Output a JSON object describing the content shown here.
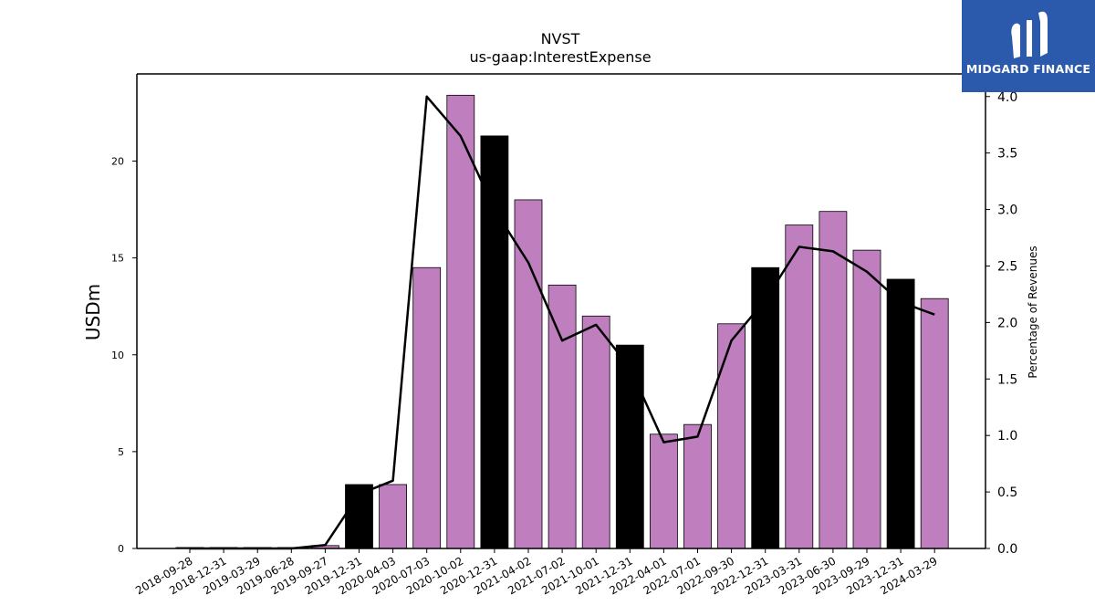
{
  "chart_data": {
    "type": "bar",
    "title": "NVST",
    "subtitle": "us-gaap:InterestExpense",
    "ylabel": "USDm",
    "y2label": "Percentage of Revenues",
    "categories": [
      "2018-09-28",
      "2018-12-31",
      "2019-03-29",
      "2019-06-28",
      "2019-09-27",
      "2019-12-31",
      "2020-04-03",
      "2020-07-03",
      "2020-10-02",
      "2020-12-31",
      "2021-04-02",
      "2021-07-02",
      "2021-10-01",
      "2021-12-31",
      "2022-04-01",
      "2022-07-01",
      "2022-09-30",
      "2022-12-31",
      "2023-03-31",
      "2023-06-30",
      "2023-09-29",
      "2023-12-31",
      "2024-03-29"
    ],
    "values": [
      0.05,
      0.05,
      0.05,
      0.05,
      0.15,
      3.3,
      3.3,
      14.5,
      23.4,
      21.3,
      18.0,
      13.6,
      12.0,
      10.5,
      5.9,
      6.4,
      11.6,
      14.5,
      16.7,
      17.4,
      15.4,
      13.9,
      12.9
    ],
    "bar_colors": [
      "#bf7fbf",
      "#bf7fbf",
      "#bf7fbf",
      "#bf7fbf",
      "#bf7fbf",
      "#000000",
      "#bf7fbf",
      "#bf7fbf",
      "#bf7fbf",
      "#000000",
      "#bf7fbf",
      "#bf7fbf",
      "#bf7fbf",
      "#000000",
      "#bf7fbf",
      "#bf7fbf",
      "#bf7fbf",
      "#000000",
      "#bf7fbf",
      "#bf7fbf",
      "#bf7fbf",
      "#000000",
      "#bf7fbf"
    ],
    "line_values": [
      0.0,
      0.0,
      0.0,
      0.0,
      0.03,
      0.48,
      0.6,
      4.0,
      3.65,
      3.0,
      2.53,
      1.84,
      1.98,
      1.6,
      0.94,
      0.99,
      1.84,
      2.2,
      2.67,
      2.63,
      2.45,
      2.18,
      2.07
    ],
    "ylim": [
      0,
      24.5
    ],
    "yticks": [
      0,
      5,
      10,
      15,
      20
    ],
    "y2lim": [
      0,
      4.2
    ],
    "y2ticks": [
      "0.0",
      "0.5",
      "1.0",
      "1.5",
      "2.0",
      "2.5",
      "3.0",
      "3.5",
      "4.0"
    ],
    "line_color": "#000000"
  },
  "logo": {
    "text": "MIDGARD FINANCE",
    "background": "#2b5aad"
  }
}
